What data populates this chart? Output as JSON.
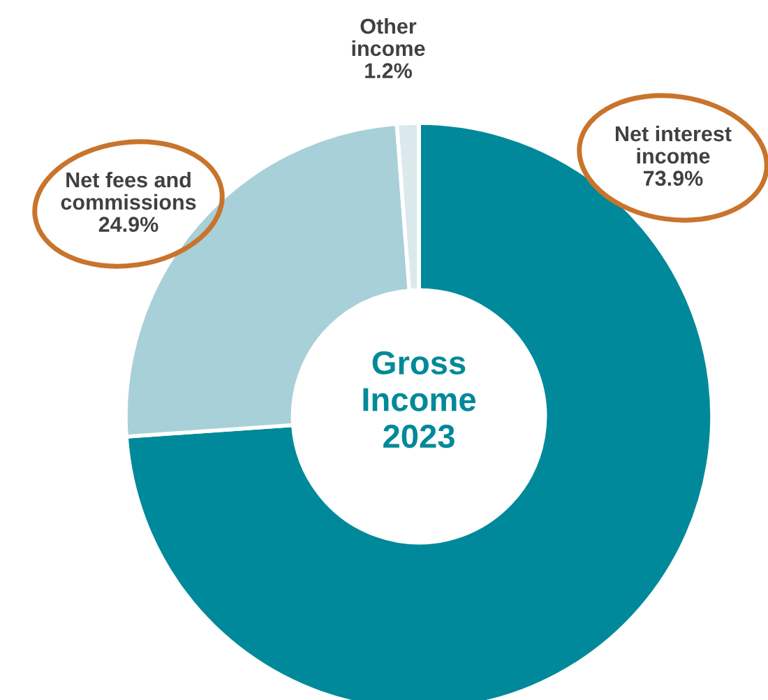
{
  "chart_data": {
    "type": "donut",
    "title": "Gross\nIncome\n2023",
    "categories": [
      "Net interest\nincome",
      "Net fees and\ncommissions",
      "Other\nincome"
    ],
    "values": [
      73.9,
      24.9,
      1.2
    ],
    "colors": [
      "#00899a",
      "#a8d0d8",
      "#dbe9ec"
    ],
    "value_labels": [
      "73.9%",
      "24.9%",
      "1.2%"
    ],
    "legend": false
  }
}
